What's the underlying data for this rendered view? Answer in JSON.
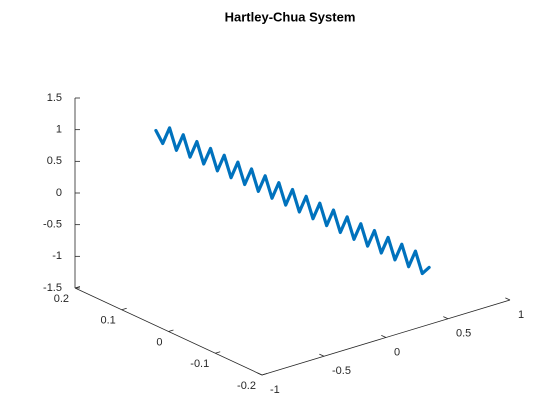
{
  "chart_data": {
    "type": "line3d",
    "title": "Hartley-Chua System",
    "color": "#0072bd",
    "xlim": [
      -1,
      1
    ],
    "xticks": [
      -1,
      -0.5,
      0,
      0.5,
      1
    ],
    "ylim": [
      -0.2,
      0.2
    ],
    "yticks": [
      -0.2,
      -0.1,
      0,
      0.1,
      0.2
    ],
    "zlim": [
      -1.5,
      1.5
    ],
    "zticks": [
      -1.5,
      -1,
      -0.5,
      0,
      0.5,
      1,
      1.5
    ],
    "x": [
      -0.8,
      -0.76,
      -0.72,
      -0.68,
      -0.64,
      -0.6,
      -0.56,
      -0.52,
      -0.48,
      -0.44,
      -0.4,
      -0.36,
      -0.32,
      -0.28,
      -0.24,
      -0.2,
      -0.16,
      -0.12,
      -0.08,
      -0.04,
      0,
      0.04,
      0.08,
      0.12,
      0.16,
      0.2,
      0.24,
      0.28,
      0.32,
      0.36,
      0.4,
      0.44,
      0.48,
      0.52,
      0.56,
      0.6,
      0.64,
      0.68,
      0.72,
      0.76,
      0.8
    ],
    "y": [
      0.08,
      0.076,
      0.072,
      0.068,
      0.064,
      0.06,
      0.056,
      0.052,
      0.048,
      0.044,
      0.04,
      0.036,
      0.032,
      0.028,
      0.024,
      0.02,
      0.016,
      0.012,
      0.008,
      0.004,
      0,
      -0.004,
      -0.008,
      -0.012,
      -0.016,
      -0.02,
      -0.024,
      -0.028,
      -0.032,
      -0.036,
      -0.04,
      -0.044,
      -0.048,
      -0.052,
      -0.056,
      -0.06,
      -0.064,
      -0.068,
      -0.072,
      -0.076,
      -0.08
    ],
    "z": [
      1.28,
      1.066,
      1.302,
      0.938,
      1.174,
      0.81,
      1.046,
      0.682,
      0.918,
      0.554,
      0.79,
      0.426,
      0.662,
      0.298,
      0.534,
      0.17,
      0.406,
      0.042,
      0.278,
      -0.086,
      0.15,
      -0.214,
      0.022,
      -0.342,
      -0.106,
      -0.47,
      -0.234,
      -0.598,
      -0.362,
      -0.726,
      -0.49,
      -0.854,
      -0.618,
      -0.982,
      -0.746,
      -1.11,
      -0.874,
      -1.238,
      -1.002,
      -1.366,
      -1.28
    ]
  }
}
